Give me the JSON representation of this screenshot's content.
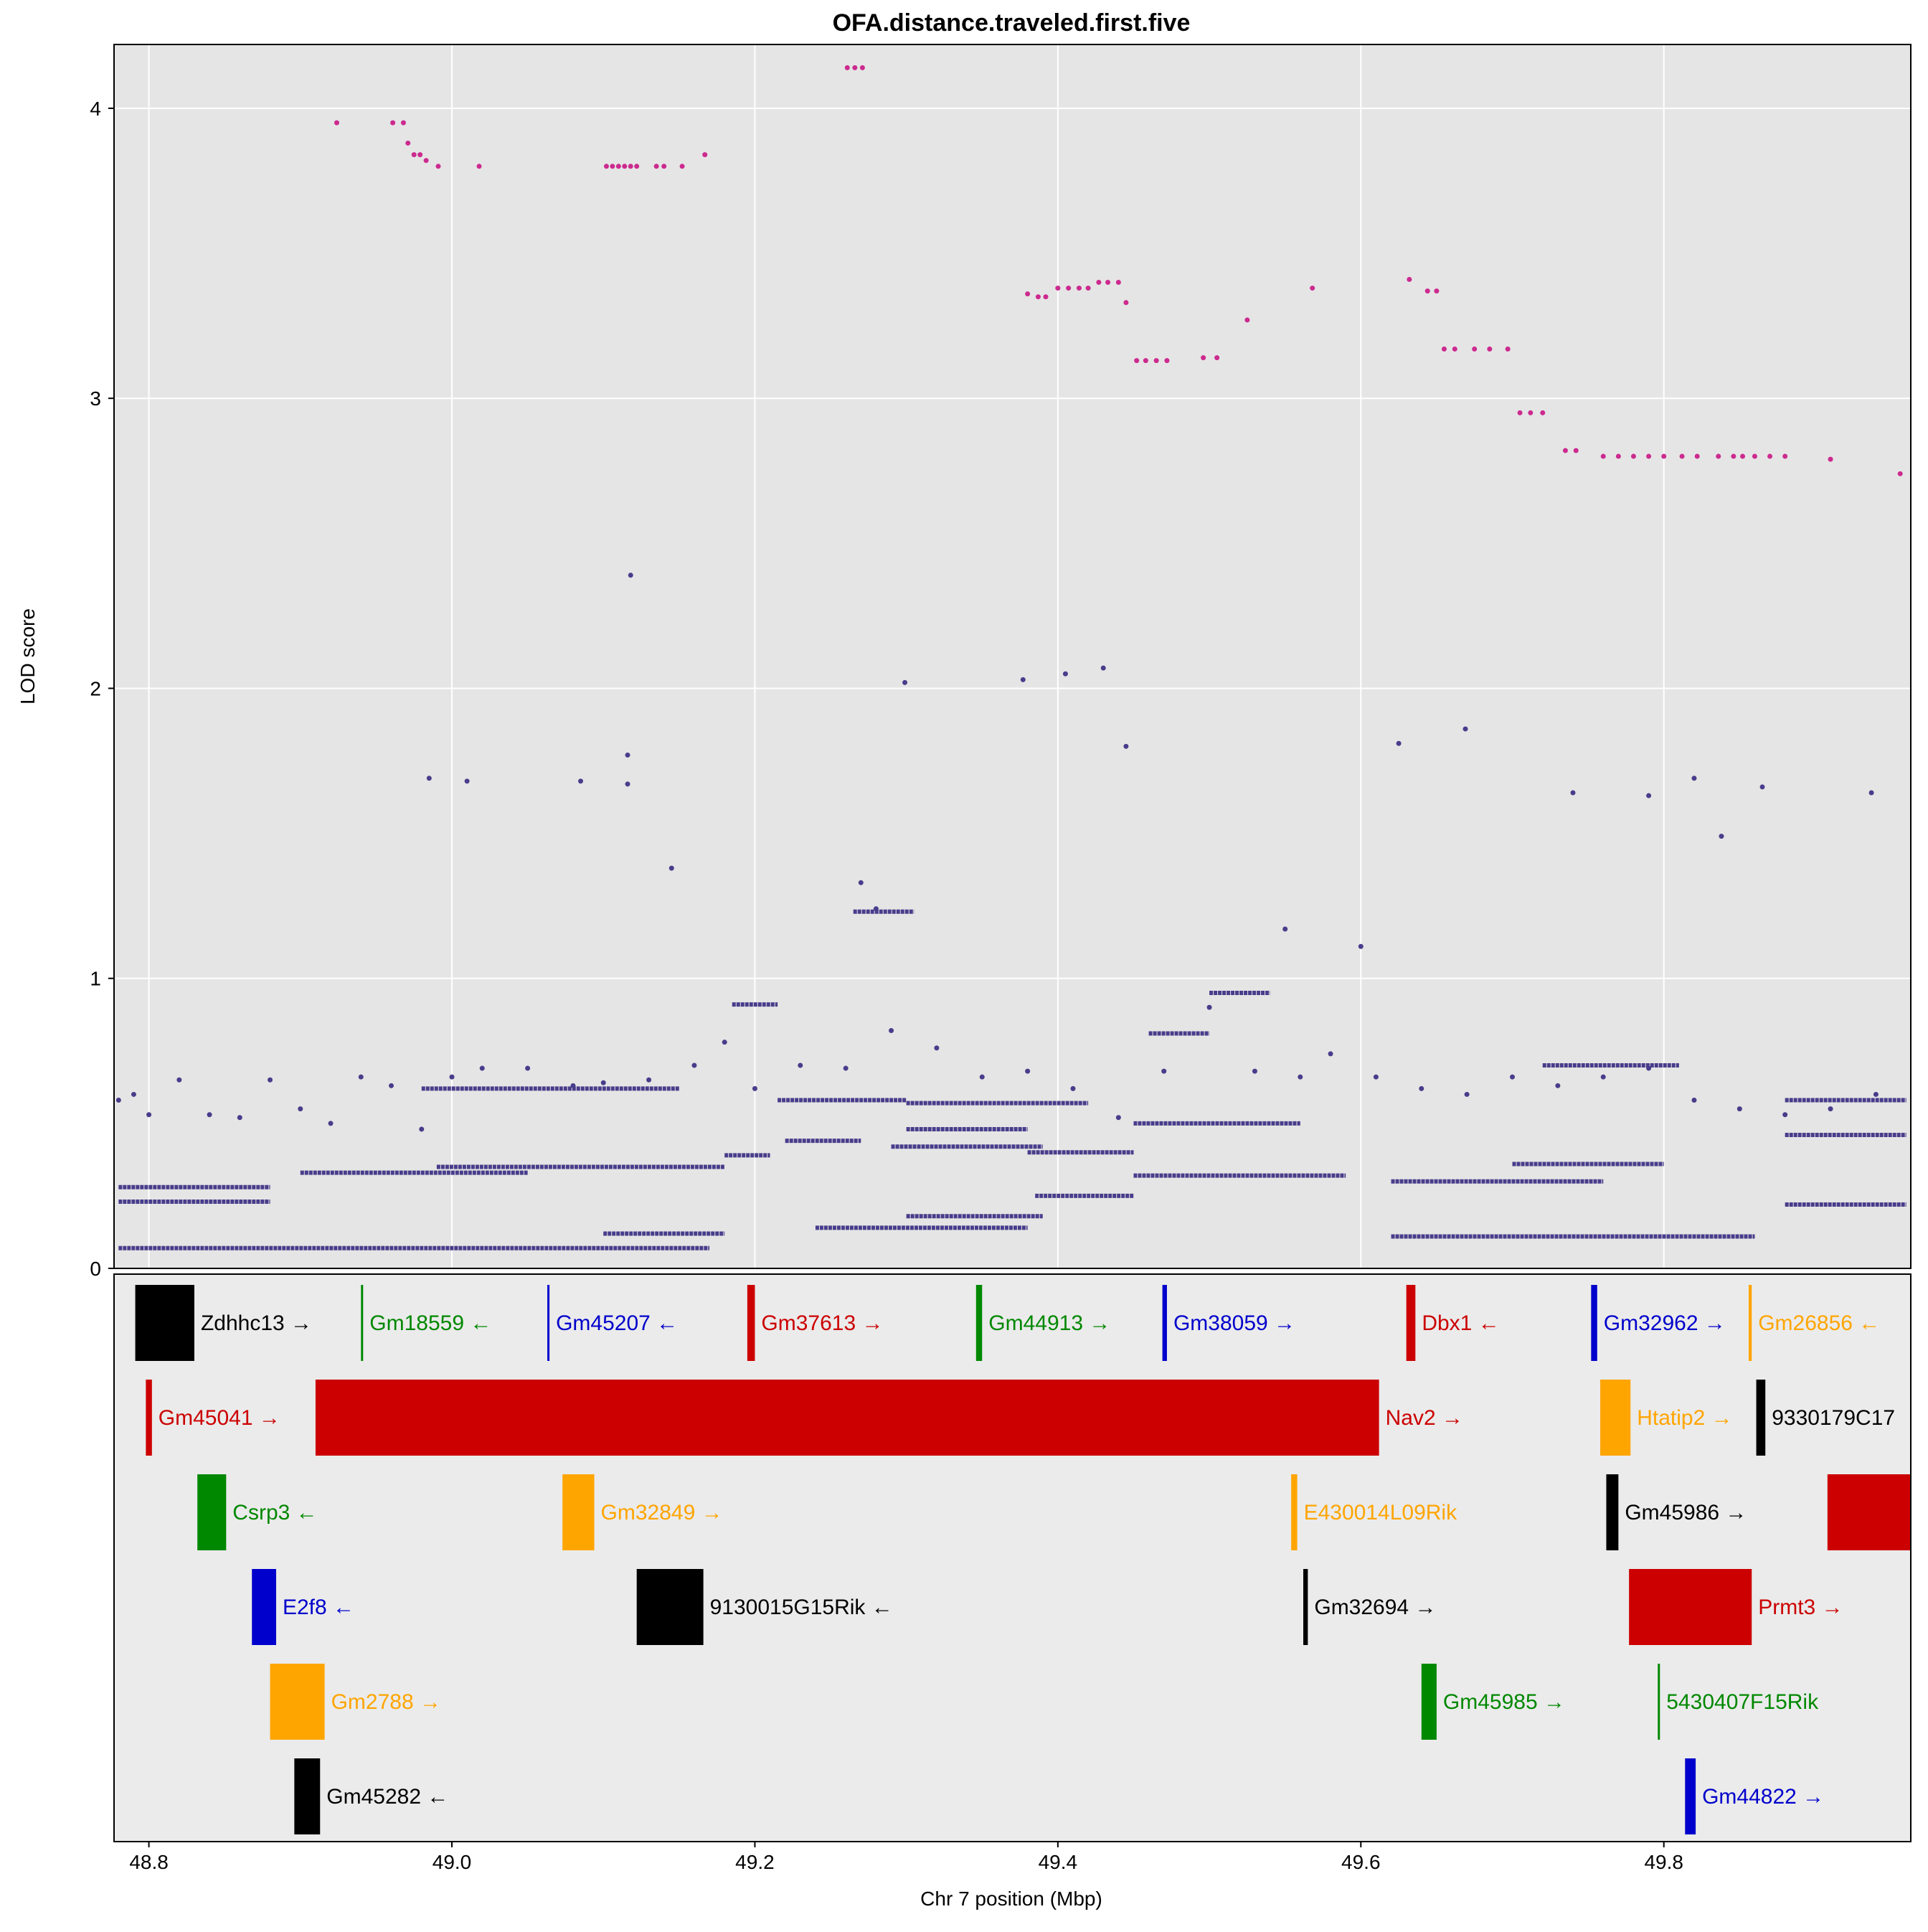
{
  "chart_data": {
    "type": "scatter",
    "title": "OFA.distance.traveled.first.five",
    "xlabel": "Chr 7 position (Mbp)",
    "ylabel": "LOD score",
    "xlim": [
      48.777,
      49.963
    ],
    "ylim": [
      0,
      4.22
    ],
    "x_ticks": [
      48.8,
      49.0,
      49.2,
      49.4,
      49.6,
      49.8
    ],
    "x_tick_labels": [
      "48.8",
      "49.0",
      "49.2",
      "49.4",
      "49.6",
      "49.8"
    ],
    "y_ticks": [
      0,
      1,
      2,
      3,
      4
    ],
    "y_tick_labels": [
      "0",
      "1",
      "2",
      "3",
      "4"
    ],
    "grid": true,
    "colors": {
      "panel_bg": "#e5e5e5",
      "gene_panel_bg": "#ebebeb",
      "grid": "#ffffff",
      "background_snps": "#483d8b",
      "top_snps": "#cc2a8f"
    },
    "top_snps": [
      [
        48.924,
        3.95
      ],
      [
        48.961,
        3.95
      ],
      [
        48.968,
        3.95
      ],
      [
        48.971,
        3.88
      ],
      [
        48.975,
        3.84
      ],
      [
        48.979,
        3.84
      ],
      [
        48.983,
        3.82
      ],
      [
        48.991,
        3.8
      ],
      [
        49.018,
        3.8
      ],
      [
        49.102,
        3.8
      ],
      [
        49.106,
        3.8
      ],
      [
        49.11,
        3.8
      ],
      [
        49.114,
        3.8
      ],
      [
        49.118,
        3.8
      ],
      [
        49.122,
        3.8
      ],
      [
        49.135,
        3.8
      ],
      [
        49.14,
        3.8
      ],
      [
        49.152,
        3.8
      ],
      [
        49.167,
        3.84
      ],
      [
        49.261,
        4.14
      ],
      [
        49.266,
        4.14
      ],
      [
        49.271,
        4.14
      ],
      [
        49.38,
        3.36
      ],
      [
        49.387,
        3.35
      ],
      [
        49.392,
        3.35
      ],
      [
        49.4,
        3.38
      ],
      [
        49.407,
        3.38
      ],
      [
        49.414,
        3.38
      ],
      [
        49.42,
        3.38
      ],
      [
        49.427,
        3.4
      ],
      [
        49.433,
        3.4
      ],
      [
        49.44,
        3.4
      ],
      [
        49.445,
        3.33
      ],
      [
        49.452,
        3.13
      ],
      [
        49.458,
        3.13
      ],
      [
        49.465,
        3.13
      ],
      [
        49.472,
        3.13
      ],
      [
        49.496,
        3.14
      ],
      [
        49.505,
        3.14
      ],
      [
        49.525,
        3.27
      ],
      [
        49.568,
        3.38
      ],
      [
        49.632,
        3.41
      ],
      [
        49.644,
        3.37
      ],
      [
        49.65,
        3.37
      ],
      [
        49.655,
        3.17
      ],
      [
        49.662,
        3.17
      ],
      [
        49.675,
        3.17
      ],
      [
        49.685,
        3.17
      ],
      [
        49.697,
        3.17
      ],
      [
        49.705,
        2.95
      ],
      [
        49.712,
        2.95
      ],
      [
        49.72,
        2.95
      ],
      [
        49.735,
        2.82
      ],
      [
        49.742,
        2.82
      ],
      [
        49.76,
        2.8
      ],
      [
        49.77,
        2.8
      ],
      [
        49.78,
        2.8
      ],
      [
        49.79,
        2.8
      ],
      [
        49.8,
        2.8
      ],
      [
        49.812,
        2.8
      ],
      [
        49.822,
        2.8
      ],
      [
        49.836,
        2.8
      ],
      [
        49.846,
        2.8
      ],
      [
        49.852,
        2.8
      ],
      [
        49.86,
        2.8
      ],
      [
        49.87,
        2.8
      ],
      [
        49.88,
        2.8
      ],
      [
        49.91,
        2.79
      ],
      [
        49.956,
        2.74
      ]
    ],
    "background_snps": [
      [
        48.78,
        0.58
      ],
      [
        48.79,
        0.6
      ],
      [
        48.8,
        0.53
      ],
      [
        48.82,
        0.65
      ],
      [
        48.84,
        0.53
      ],
      [
        48.86,
        0.52
      ],
      [
        48.88,
        0.65
      ],
      [
        48.9,
        0.55
      ],
      [
        48.92,
        0.5
      ],
      [
        48.94,
        0.66
      ],
      [
        48.96,
        0.63
      ],
      [
        48.98,
        0.48
      ],
      [
        49.0,
        0.66
      ],
      [
        49.02,
        0.69
      ],
      [
        49.05,
        0.69
      ],
      [
        49.08,
        0.63
      ],
      [
        49.1,
        0.64
      ],
      [
        49.13,
        0.65
      ],
      [
        49.16,
        0.7
      ],
      [
        49.18,
        0.78
      ],
      [
        49.2,
        0.62
      ],
      [
        49.23,
        0.7
      ],
      [
        49.26,
        0.69
      ],
      [
        49.29,
        0.82
      ],
      [
        49.32,
        0.76
      ],
      [
        49.35,
        0.66
      ],
      [
        49.38,
        0.68
      ],
      [
        49.41,
        0.62
      ],
      [
        49.44,
        0.52
      ],
      [
        49.47,
        0.68
      ],
      [
        49.5,
        0.9
      ],
      [
        49.53,
        0.68
      ],
      [
        49.56,
        0.66
      ],
      [
        49.58,
        0.74
      ],
      [
        49.61,
        0.66
      ],
      [
        49.64,
        0.62
      ],
      [
        49.67,
        0.6
      ],
      [
        49.7,
        0.66
      ],
      [
        49.73,
        0.63
      ],
      [
        49.76,
        0.66
      ],
      [
        49.79,
        0.69
      ],
      [
        49.82,
        0.58
      ],
      [
        49.85,
        0.55
      ],
      [
        49.88,
        0.53
      ],
      [
        49.91,
        0.55
      ],
      [
        49.94,
        0.6
      ],
      [
        48.985,
        1.69
      ],
      [
        49.01,
        1.68
      ],
      [
        49.085,
        1.68
      ],
      [
        49.118,
        2.39
      ],
      [
        49.116,
        1.77
      ],
      [
        49.116,
        1.67
      ],
      [
        49.145,
        1.38
      ],
      [
        49.299,
        2.02
      ],
      [
        49.377,
        2.03
      ],
      [
        49.405,
        2.05
      ],
      [
        49.43,
        2.07
      ],
      [
        49.445,
        1.8
      ],
      [
        49.625,
        1.81
      ],
      [
        49.669,
        1.86
      ],
      [
        49.74,
        1.64
      ],
      [
        49.79,
        1.63
      ],
      [
        49.82,
        1.69
      ],
      [
        49.838,
        1.49
      ],
      [
        49.865,
        1.66
      ],
      [
        49.937,
        1.64
      ],
      [
        49.27,
        1.33
      ],
      [
        49.28,
        1.24
      ],
      [
        49.55,
        1.17
      ],
      [
        49.6,
        1.11
      ]
    ],
    "bands": [
      {
        "y": 0.07,
        "x": [
          48.78,
          49.17
        ]
      },
      {
        "y": 0.23,
        "x": [
          48.78,
          48.88
        ]
      },
      {
        "y": 0.28,
        "x": [
          48.78,
          48.88
        ]
      },
      {
        "y": 0.33,
        "x": [
          48.9,
          49.05
        ]
      },
      {
        "y": 0.35,
        "x": [
          48.99,
          49.18
        ]
      },
      {
        "y": 0.39,
        "x": [
          49.18,
          49.21
        ]
      },
      {
        "y": 0.44,
        "x": [
          49.22,
          49.27
        ]
      },
      {
        "y": 0.42,
        "x": [
          49.29,
          49.39
        ]
      },
      {
        "y": 0.4,
        "x": [
          49.38,
          49.45
        ]
      },
      {
        "y": 0.32,
        "x": [
          49.45,
          49.59
        ]
      },
      {
        "y": 0.3,
        "x": [
          49.62,
          49.76
        ]
      },
      {
        "y": 0.36,
        "x": [
          49.7,
          49.8
        ]
      },
      {
        "y": 0.11,
        "x": [
          49.62,
          49.86
        ]
      },
      {
        "y": 0.18,
        "x": [
          49.3,
          49.39
        ]
      },
      {
        "y": 0.14,
        "x": [
          49.24,
          49.38
        ]
      },
      {
        "y": 0.25,
        "x": [
          49.385,
          49.45
        ]
      },
      {
        "y": 0.58,
        "x": [
          49.215,
          49.3
        ]
      },
      {
        "y": 0.57,
        "x": [
          49.3,
          49.42
        ]
      },
      {
        "y": 0.91,
        "x": [
          49.185,
          49.215
        ]
      },
      {
        "y": 1.23,
        "x": [
          49.265,
          49.305
        ]
      },
      {
        "y": 0.81,
        "x": [
          49.46,
          49.5
        ]
      },
      {
        "y": 0.95,
        "x": [
          49.5,
          49.54
        ]
      },
      {
        "y": 0.5,
        "x": [
          49.45,
          49.56
        ]
      },
      {
        "y": 0.62,
        "x": [
          48.98,
          49.15
        ]
      },
      {
        "y": 0.48,
        "x": [
          49.3,
          49.38
        ]
      },
      {
        "y": 0.12,
        "x": [
          49.1,
          49.18
        ]
      },
      {
        "y": 0.7,
        "x": [
          49.72,
          49.81
        ]
      },
      {
        "y": 0.46,
        "x": [
          49.88,
          49.96
        ]
      },
      {
        "y": 0.22,
        "x": [
          49.88,
          49.96
        ]
      },
      {
        "y": 0.58,
        "x": [
          49.88,
          49.96
        ]
      }
    ]
  },
  "genes": [
    {
      "name": "Zdhhc13",
      "strand": "→",
      "start": 48.791,
      "end": 48.83,
      "row": 0,
      "color": "#000000"
    },
    {
      "name": "Gm18559",
      "strand": "←",
      "start": 48.94,
      "end": 48.941,
      "row": 0,
      "color": "#008800"
    },
    {
      "name": "Gm45207",
      "strand": "←",
      "start": 49.063,
      "end": 49.064,
      "row": 0,
      "color": "#0000cc"
    },
    {
      "name": "Gm37613",
      "strand": "→",
      "start": 49.195,
      "end": 49.2,
      "row": 0,
      "color": "#cc0000"
    },
    {
      "name": "Gm44913",
      "strand": "→",
      "start": 49.346,
      "end": 49.35,
      "row": 0,
      "color": "#008800"
    },
    {
      "name": "Gm38059",
      "strand": "→",
      "start": 49.469,
      "end": 49.472,
      "row": 0,
      "color": "#0000cc"
    },
    {
      "name": "Dbx1",
      "strand": "←",
      "start": 49.63,
      "end": 49.636,
      "row": 0,
      "color": "#cc0000"
    },
    {
      "name": "Gm32962",
      "strand": "→",
      "start": 49.752,
      "end": 49.756,
      "row": 0,
      "color": "#0000cc"
    },
    {
      "name": "Gm26856",
      "strand": "←",
      "start": 49.856,
      "end": 49.858,
      "row": 0,
      "color": "#ffa500"
    },
    {
      "name": "Gm45041",
      "strand": "→",
      "start": 48.798,
      "end": 48.802,
      "row": 1,
      "color": "#cc0000"
    },
    {
      "name": "Nav2",
      "strand": "→",
      "start": 48.91,
      "end": 49.612,
      "row": 1,
      "color": "#cc0000"
    },
    {
      "name": "Htatip2",
      "strand": "→",
      "start": 49.758,
      "end": 49.778,
      "row": 1,
      "color": "#ffa500"
    },
    {
      "name": "9330179C17",
      "strand": "",
      "start": 49.861,
      "end": 49.867,
      "row": 1,
      "color": "#000000"
    },
    {
      "name": "Csrp3",
      "strand": "←",
      "start": 48.832,
      "end": 48.851,
      "row": 2,
      "color": "#008800"
    },
    {
      "name": "Gm32849",
      "strand": "→",
      "start": 49.073,
      "end": 49.094,
      "row": 2,
      "color": "#ffa500"
    },
    {
      "name": "E430014L09Rik",
      "strand": "",
      "start": 49.554,
      "end": 49.558,
      "row": 2,
      "color": "#ffa500"
    },
    {
      "name": "Gm45986",
      "strand": "→",
      "start": 49.762,
      "end": 49.77,
      "row": 2,
      "color": "#000000"
    },
    {
      "name": "",
      "strand": "",
      "start": 49.908,
      "end": 49.963,
      "row": 2,
      "color": "#cc0000"
    },
    {
      "name": "E2f8",
      "strand": "←",
      "start": 48.868,
      "end": 48.884,
      "row": 3,
      "color": "#0000cc"
    },
    {
      "name": "9130015G15Rik",
      "strand": "←",
      "start": 49.122,
      "end": 49.166,
      "row": 3,
      "color": "#000000"
    },
    {
      "name": "Gm32694",
      "strand": "→",
      "start": 49.562,
      "end": 49.565,
      "row": 3,
      "color": "#000000"
    },
    {
      "name": "Prmt3",
      "strand": "→",
      "start": 49.777,
      "end": 49.858,
      "row": 3,
      "color": "#cc0000"
    },
    {
      "name": "Gm2788",
      "strand": "→",
      "start": 48.88,
      "end": 48.916,
      "row": 4,
      "color": "#ffa500"
    },
    {
      "name": "Gm45985",
      "strand": "→",
      "start": 49.64,
      "end": 49.65,
      "row": 4,
      "color": "#008800"
    },
    {
      "name": "5430407F15Rik",
      "strand": "",
      "start": 49.796,
      "end": 49.797,
      "row": 4,
      "color": "#008800"
    },
    {
      "name": "Gm45282",
      "strand": "←",
      "start": 48.896,
      "end": 48.913,
      "row": 5,
      "color": "#000000"
    },
    {
      "name": "Gm44822",
      "strand": "→",
      "start": 49.814,
      "end": 49.821,
      "row": 5,
      "color": "#0000cc"
    }
  ]
}
